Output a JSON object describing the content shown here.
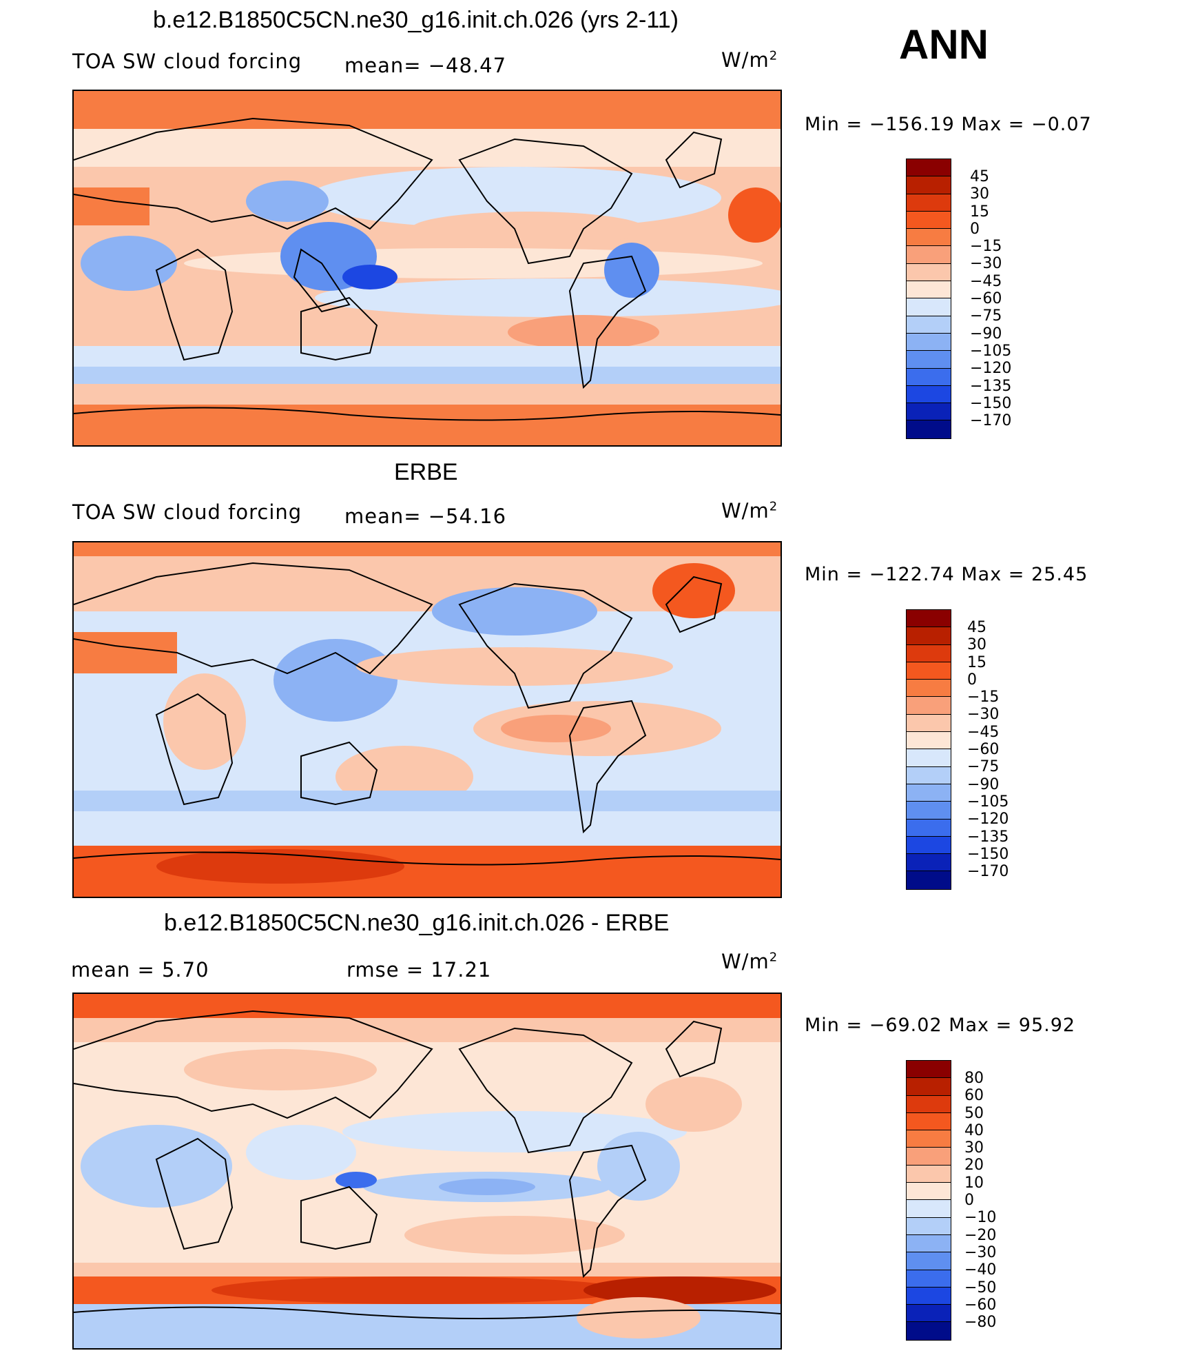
{
  "season": "ANN",
  "panels": [
    {
      "title": "b.e12.B1850C5CN.ne30_g16.init.ch.026 (yrs 2-11)",
      "variable": "TOA SW cloud forcing",
      "stat_left": "",
      "stat_mid": "mean=  −48.47",
      "units": "W/m",
      "units_sup": "2",
      "min_max": "Min  =  −156.19  Max  =    −0.07",
      "colorbar": {
        "labels": [
          "45",
          "30",
          "15",
          "0",
          "−15",
          "−30",
          "−45",
          "−60",
          "−75",
          "−90",
          "−105",
          "−120",
          "−135",
          "−150",
          "−170"
        ],
        "colors": [
          "#8a0000",
          "#b82000",
          "#dd3a0d",
          "#f4581f",
          "#f77c42",
          "#f9a07a",
          "#fbc7ac",
          "#fde6d6",
          "#d8e7fb",
          "#b3cff8",
          "#8cb2f4",
          "#5f8ff0",
          "#3b6ded",
          "#1c47e2",
          "#0a22b8",
          "#000c8a"
        ]
      },
      "bg_color": "#fbdcc6"
    },
    {
      "title": "ERBE",
      "variable": "TOA SW cloud forcing",
      "stat_left": "",
      "stat_mid": "mean=  −54.16",
      "units": "W/m",
      "units_sup": "2",
      "min_max": "Min  =  −122.74  Max  =    25.45",
      "colorbar": {
        "labels": [
          "45",
          "30",
          "15",
          "0",
          "−15",
          "−30",
          "−45",
          "−60",
          "−75",
          "−90",
          "−105",
          "−120",
          "−135",
          "−150",
          "−170"
        ],
        "colors": [
          "#8a0000",
          "#b82000",
          "#dd3a0d",
          "#f4581f",
          "#f77c42",
          "#f9a07a",
          "#fbc7ac",
          "#fde6d6",
          "#d8e7fb",
          "#b3cff8",
          "#8cb2f4",
          "#5f8ff0",
          "#3b6ded",
          "#1c47e2",
          "#0a22b8",
          "#000c8a"
        ]
      },
      "bg_color": "#d8e7fb"
    },
    {
      "title": "b.e12.B1850C5CN.ne30_g16.init.ch.026 - ERBE",
      "variable": "",
      "stat_left": "mean  =      5.70",
      "stat_mid": "rmse  =     17.21",
      "units": "W/m",
      "units_sup": "2",
      "min_max": "Min  =  −69.02  Max  =     95.92",
      "colorbar": {
        "labels": [
          "80",
          "60",
          "50",
          "40",
          "30",
          "20",
          "10",
          "0",
          "−10",
          "−20",
          "−30",
          "−40",
          "−50",
          "−60",
          "−80"
        ],
        "colors": [
          "#8a0000",
          "#b82000",
          "#dd3a0d",
          "#f4581f",
          "#f77c42",
          "#f9a07a",
          "#fbc7ac",
          "#fde6d6",
          "#d8e7fb",
          "#b3cff8",
          "#8cb2f4",
          "#5f8ff0",
          "#3b6ded",
          "#1c47e2",
          "#0a22b8",
          "#000c8a"
        ]
      },
      "bg_color": "#fde6d6"
    }
  ]
}
